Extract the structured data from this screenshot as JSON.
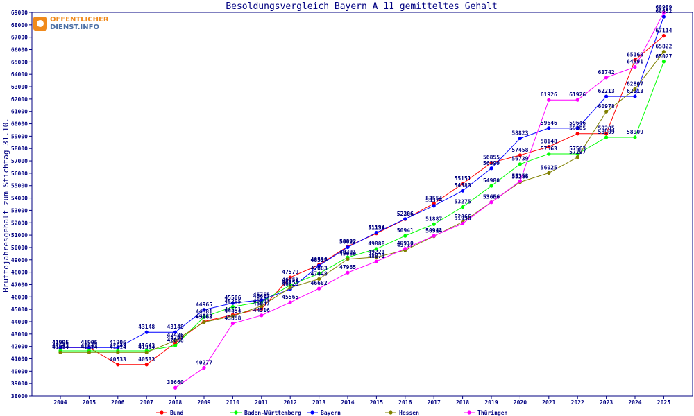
{
  "chart_data": {
    "type": "line",
    "title": "Besoldungsvergleich Bayern A 11 gemitteltes Gehalt",
    "ylabel": "Bruttojahresgehalt zum Stichtag 31.10.",
    "xlabel": "",
    "ylim": [
      38000,
      69000
    ],
    "yticks": [
      "38000",
      "39000",
      "40000",
      "41000",
      "42000",
      "43000",
      "44000",
      "45000",
      "46000",
      "47000",
      "48000",
      "49000",
      "50000",
      "51000",
      "52000",
      "53000",
      "54000",
      "55000",
      "56000",
      "57000",
      "58000",
      "59000",
      "60000",
      "61000",
      "62000",
      "63000",
      "64000",
      "65000",
      "66000",
      "67000",
      "68000",
      "69000"
    ],
    "categories": [
      "2004",
      "2005",
      "2006",
      "2007",
      "2008",
      "2009",
      "2010",
      "2011",
      "2012",
      "2013",
      "2014",
      "2015",
      "2016",
      "2017",
      "2018",
      "2019",
      "2020",
      "2021",
      "2022",
      "2023",
      "2024",
      "2025"
    ],
    "legend_position": "bottom",
    "grid": false,
    "series": [
      {
        "name": "Bund",
        "color": "#ff0000",
        "values": [
          41905,
          41905,
          40533,
          40533,
          42295,
          44022,
          44551,
          45047,
          47579,
          48596,
          50092,
          51134,
          52286,
          53554,
          55151,
          56855,
          57458,
          58148,
          59205,
          59205,
          65160,
          67114
        ]
      },
      {
        "name": "Baden-Württemberg",
        "color": "#00ff00",
        "values": [
          41643,
          41643,
          41643,
          41643,
          42068,
          44381,
          45205,
          45617,
          46953,
          47883,
          49201,
          49888,
          50941,
          51887,
          53275,
          54980,
          56739,
          57563,
          57563,
          58909,
          58909,
          65027
        ]
      },
      {
        "name": "Bayern",
        "color": "#0000ff",
        "values": [
          41906,
          41906,
          41906,
          43148,
          43148,
          44965,
          45506,
          45755,
          46628,
          48527,
          50022,
          51194,
          52306,
          53374,
          54583,
          56399,
          58823,
          59646,
          59646,
          62213,
          62213,
          68652
        ]
      },
      {
        "name": "Hessen",
        "color": "#808000",
        "values": [
          41514,
          41514,
          41514,
          41514,
          42486,
          43963,
          44454,
          45263,
          46755,
          47448,
          49060,
          49221,
          49777,
          50914,
          52066,
          53666,
          55286,
          56025,
          57297,
          60978,
          62807,
          65822
        ]
      },
      {
        "name": "Thüringen",
        "color": "#ff00ff",
        "values": [
          null,
          null,
          null,
          null,
          38660,
          40277,
          43858,
          44516,
          45565,
          46682,
          47965,
          48871,
          49910,
          50941,
          51936,
          53656,
          55358,
          61926,
          61926,
          63742,
          64591,
          68989
        ]
      }
    ]
  },
  "watermark": {
    "line1": "OFFENTLICHER",
    "line2": "DIENST.INFO"
  }
}
